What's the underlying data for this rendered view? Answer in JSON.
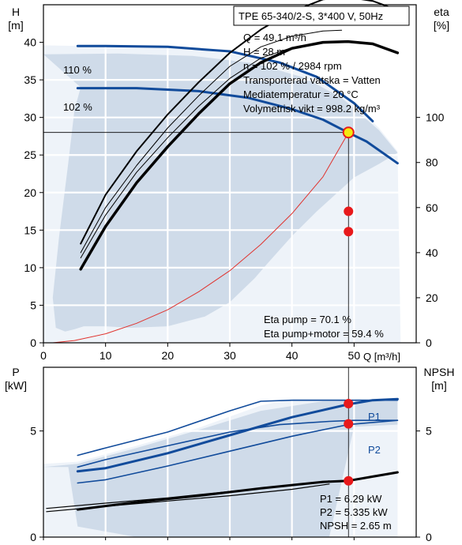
{
  "chart_data": [
    {
      "type": "line",
      "name": "pump-curve",
      "title": "TPE 65-340/2-S, 3*400 V, 50Hz",
      "xlabel": "Q [m³/h]",
      "ylabel_line1": "H",
      "ylabel_line2": "[m]",
      "ylabel_right_line1": "eta",
      "ylabel_right_line2": "[%]",
      "xlim": [
        0,
        60
      ],
      "ylim": [
        0,
        45
      ],
      "y2lim": [
        0,
        150
      ],
      "xticks": [
        0,
        10,
        20,
        30,
        40,
        50
      ],
      "yticks": [
        0,
        5,
        10,
        15,
        20,
        25,
        30,
        35,
        40
      ],
      "y2ticks": [
        0,
        20,
        40,
        60,
        80,
        100
      ],
      "grid": true,
      "info_lines": [
        "Q = 49.1 m³/h",
        "H = 28 m",
        "n = 102 % / 2984 rpm",
        "Transporterad vätska = Vatten",
        "Mediatemperatur = 20 °C",
        "Volymetrisk vikt = 998.2 kg/m³"
      ],
      "bottom_lines": [
        "Eta pump = 70.1 %",
        "Eta pump+motor = 59.4 %"
      ],
      "curve_labels": [
        "110 %",
        "102 %"
      ],
      "duty_point": {
        "x": 49.1,
        "y": 28
      },
      "region_lightest": [
        [
          0,
          39.6
        ],
        [
          6,
          39.5
        ],
        [
          14,
          39.4
        ],
        [
          24,
          39.1
        ],
        [
          34,
          38
        ],
        [
          42,
          36
        ],
        [
          48,
          33.4
        ],
        [
          54,
          28.6
        ],
        [
          57,
          25.5
        ],
        [
          57.5,
          0
        ],
        [
          0,
          0
        ]
      ],
      "region_light": [
        [
          0,
          38.4
        ],
        [
          12,
          38.5
        ],
        [
          24,
          38.2
        ],
        [
          34,
          37.2
        ],
        [
          42,
          35.3
        ],
        [
          48,
          32.6
        ],
        [
          54,
          28.3
        ],
        [
          57,
          25.3
        ],
        [
          54,
          23.8
        ],
        [
          50,
          22
        ],
        [
          44,
          17.5
        ],
        [
          40,
          14.2
        ],
        [
          36,
          10.5
        ],
        [
          34,
          8.6
        ],
        [
          30,
          5.4
        ],
        [
          26,
          3.5
        ],
        [
          20,
          2.2
        ],
        [
          14,
          2.0
        ],
        [
          10,
          2.2
        ],
        [
          6.5,
          2.2
        ],
        [
          5,
          1.8
        ],
        [
          3.5,
          1.5
        ],
        [
          2,
          2
        ],
        [
          1.5,
          6
        ],
        [
          2.5,
          14
        ],
        [
          4,
          24
        ],
        [
          5,
          31
        ],
        [
          6,
          34
        ]
      ],
      "series": [
        {
          "name": "110 %",
          "role": "head",
          "color": "#114b9b",
          "width": 3,
          "points": [
            [
              5.5,
              39.5
            ],
            [
              10,
              39.5
            ],
            [
              20,
              39.4
            ],
            [
              30,
              38.8
            ],
            [
              38,
              37.3
            ],
            [
              44,
              35.4
            ],
            [
              50,
              31.9
            ],
            [
              53,
              29.5
            ]
          ]
        },
        {
          "name": "102 %",
          "role": "head",
          "color": "#114b9b",
          "width": 3,
          "points": [
            [
              5.5,
              33.9
            ],
            [
              15,
              33.9
            ],
            [
              25,
              33.5
            ],
            [
              33,
              32.6
            ],
            [
              40,
              31.1
            ],
            [
              45,
              29.7
            ],
            [
              49,
              28
            ],
            [
              52,
              26.8
            ],
            [
              57,
              23.9
            ]
          ]
        },
        {
          "name": "eta outer",
          "role": "eta",
          "color": "#000000",
          "width": 2,
          "points": [
            [
              6,
              13.2
            ],
            [
              10,
              19.7
            ],
            [
              15,
              25.5
            ],
            [
              20,
              30.4
            ],
            [
              25,
              34.7
            ],
            [
              30,
              38.6
            ],
            [
              35,
              41.7
            ],
            [
              40,
              44.1
            ],
            [
              45,
              45.7
            ],
            [
              49,
              46
            ],
            [
              53,
              45.5
            ],
            [
              57,
              44.3
            ]
          ]
        },
        {
          "name": "eta thin a",
          "role": "eta",
          "color": "#000000",
          "width": 1,
          "points": [
            [
              6,
              12.0
            ],
            [
              10,
              18.0
            ],
            [
              15,
              23.6
            ],
            [
              20,
              28.6
            ],
            [
              25,
              32.9
            ],
            [
              30,
              36.8
            ],
            [
              35,
              39.4
            ],
            [
              40,
              40.8
            ],
            [
              45,
              41.5
            ],
            [
              48,
              41.6
            ]
          ]
        },
        {
          "name": "eta thin b",
          "role": "eta",
          "color": "#000000",
          "width": 1,
          "points": [
            [
              6,
              11.3
            ],
            [
              10,
              17.0
            ],
            [
              15,
              22.7
            ],
            [
              20,
              27.3
            ],
            [
              25,
              31.5
            ],
            [
              30,
              35.2
            ],
            [
              35,
              37.9
            ],
            [
              40,
              39.3
            ],
            [
              45,
              39.9
            ],
            [
              48,
              40.0
            ]
          ]
        },
        {
          "name": "eta pump",
          "role": "eta",
          "color": "#000000",
          "width": 3.5,
          "points": [
            [
              6,
              9.8
            ],
            [
              10,
              15.5
            ],
            [
              15,
              21.3
            ],
            [
              20,
              26.1
            ],
            [
              25,
              30.5
            ],
            [
              30,
              34.5
            ],
            [
              35,
              37.3
            ],
            [
              40,
              39.2
            ],
            [
              45,
              40.0
            ],
            [
              49,
              40.1
            ],
            [
              53,
              39.8
            ],
            [
              57,
              38.6
            ]
          ]
        },
        {
          "name": "system curve",
          "role": "system",
          "color": "#e0332e",
          "width": 1,
          "points": [
            [
              1.5,
              0
            ],
            [
              5,
              0.3
            ],
            [
              10,
              1.2
            ],
            [
              15,
              2.6
            ],
            [
              20,
              4.4
            ],
            [
              25,
              6.8
            ],
            [
              30,
              9.6
            ],
            [
              35,
              13.1
            ],
            [
              40,
              17.2
            ],
            [
              45,
              22.1
            ],
            [
              49.1,
              28
            ]
          ]
        }
      ],
      "markers": [
        {
          "x": 49.1,
          "y": 17.5,
          "color": "#e8191b"
        },
        {
          "x": 49.1,
          "y": 14.8,
          "color": "#e8191b"
        }
      ]
    },
    {
      "type": "line",
      "name": "power-curve",
      "ylabel_line1": "P",
      "ylabel_line2": "[kW]",
      "ylabel_right_line1": "NPSH",
      "ylabel_right_line2": "[m]",
      "xlim": [
        0,
        60
      ],
      "ylim": [
        0,
        8
      ],
      "y2lim": [
        0,
        8
      ],
      "yticks": [
        0,
        5
      ],
      "y2ticks": [
        0,
        5
      ],
      "grid": true,
      "curve_labels": [
        "P1",
        "P2"
      ],
      "info_lines": [
        "P1 = 6.29 kW",
        "P2 = 5.335 kW",
        "NPSH = 2.65 m"
      ],
      "region_lightest": [
        [
          0,
          3.45
        ],
        [
          5.5,
          3.55
        ],
        [
          15,
          4.3
        ],
        [
          25,
          5.15
        ],
        [
          35,
          6.2
        ],
        [
          40,
          6.5
        ],
        [
          57,
          6.5
        ],
        [
          57,
          0
        ],
        [
          0,
          0
        ]
      ],
      "region_light": [
        [
          0,
          3.3
        ],
        [
          5.5,
          3.45
        ],
        [
          15,
          4.2
        ],
        [
          25,
          5.05
        ],
        [
          35,
          5.95
        ],
        [
          45,
          6.4
        ],
        [
          57,
          6.45
        ],
        [
          57,
          5.3
        ],
        [
          50,
          5.2
        ],
        [
          46,
          0
        ],
        [
          15,
          0
        ],
        [
          5.5,
          0.5
        ],
        [
          4,
          3.3
        ]
      ],
      "series": [
        {
          "name": "P1 110",
          "color": "#114b9b",
          "width": 1.6,
          "points": [
            [
              5.5,
              3.85
            ],
            [
              10,
              4.2
            ],
            [
              20,
              4.95
            ],
            [
              30,
              5.95
            ],
            [
              35,
              6.4
            ],
            [
              40,
              6.45
            ],
            [
              50,
              6.45
            ],
            [
              57,
              6.45
            ]
          ]
        },
        {
          "name": "P1 102",
          "color": "#114b9b",
          "width": 3,
          "points": [
            [
              5.5,
              3.1
            ],
            [
              10,
              3.25
            ],
            [
              20,
              3.95
            ],
            [
              30,
              4.8
            ],
            [
              40,
              5.65
            ],
            [
              49,
              6.25
            ],
            [
              53,
              6.45
            ],
            [
              57,
              6.5
            ]
          ]
        },
        {
          "name": "P2 110",
          "color": "#114b9b",
          "width": 1.6,
          "points": [
            [
              5.5,
              3.3
            ],
            [
              10,
              3.65
            ],
            [
              20,
              4.3
            ],
            [
              30,
              4.95
            ],
            [
              38,
              5.3
            ],
            [
              46,
              5.45
            ],
            [
              50,
              5.5
            ],
            [
              57,
              5.5
            ]
          ]
        },
        {
          "name": "P2 102",
          "color": "#114b9b",
          "width": 1.6,
          "points": [
            [
              5.5,
              2.55
            ],
            [
              10,
              2.7
            ],
            [
              20,
              3.35
            ],
            [
              30,
              4.05
            ],
            [
              40,
              4.75
            ],
            [
              49,
              5.3
            ],
            [
              57,
              5.5
            ]
          ]
        },
        {
          "name": "NPSH a",
          "color": "#000000",
          "width": 1.2,
          "points": [
            [
              0.5,
              1.35
            ],
            [
              10,
              1.6
            ],
            [
              20,
              1.85
            ],
            [
              30,
              2.15
            ],
            [
              40,
              2.45
            ],
            [
              46,
              2.65
            ]
          ]
        },
        {
          "name": "NPSH b",
          "color": "#000000",
          "width": 1.2,
          "points": [
            [
              0.5,
              1.2
            ],
            [
              10,
              1.45
            ],
            [
              20,
              1.7
            ],
            [
              30,
              1.95
            ],
            [
              40,
              2.25
            ],
            [
              46,
              2.5
            ]
          ]
        },
        {
          "name": "NPSH",
          "color": "#000000",
          "width": 3,
          "points": [
            [
              5.5,
              1.3
            ],
            [
              15,
              1.65
            ],
            [
              25,
              1.95
            ],
            [
              35,
              2.3
            ],
            [
              45,
              2.6
            ],
            [
              49,
              2.65
            ],
            [
              53,
              2.85
            ],
            [
              57,
              3.05
            ]
          ]
        }
      ],
      "markers": [
        {
          "x": 49.1,
          "y": 6.29,
          "color": "#e8191b"
        },
        {
          "x": 49.1,
          "y": 5.335,
          "color": "#e8191b"
        },
        {
          "x": 49.1,
          "y": 2.65,
          "color": "#e8191b"
        }
      ]
    }
  ]
}
